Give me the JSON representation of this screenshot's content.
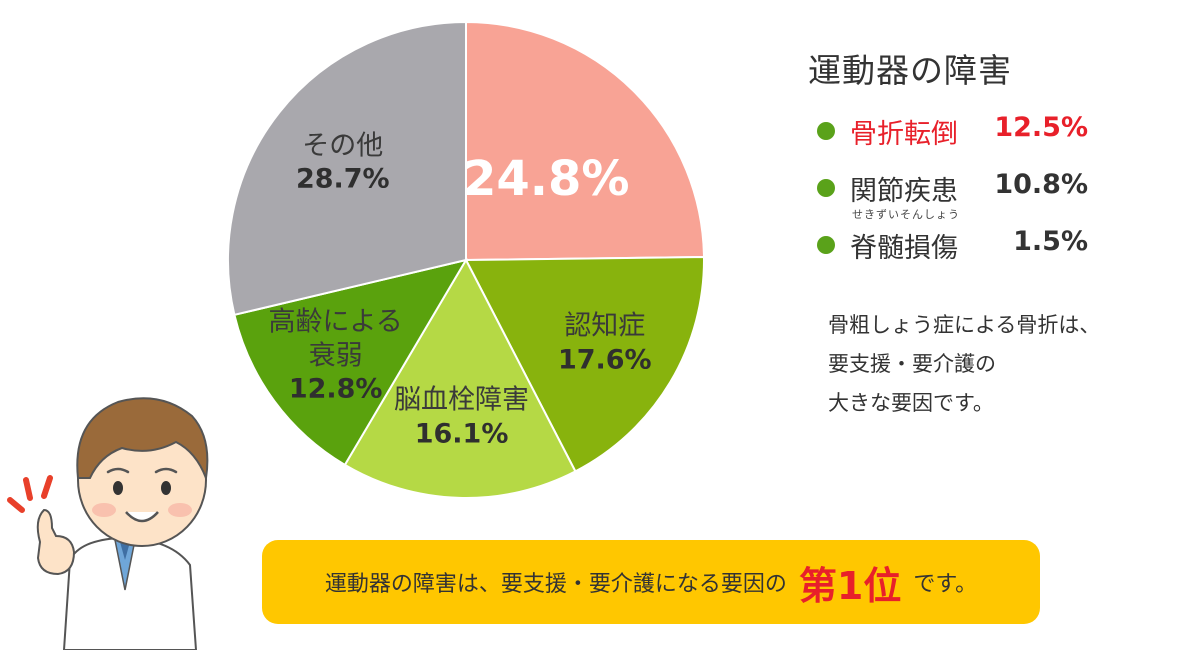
{
  "chart_data": {
    "type": "pie",
    "start_angle_deg": 0,
    "direction": "clockwise",
    "slices": [
      {
        "name": "",
        "value": 24.8,
        "label": "24.8%",
        "color": "#f8a395"
      },
      {
        "name": "認知症",
        "value": 17.6,
        "label": "17.6%",
        "color": "#88b30d"
      },
      {
        "name": "脳血栓障害",
        "value": 16.1,
        "label": "16.1%",
        "color": "#b5d945"
      },
      {
        "name": "高齢による\n衰弱",
        "value": 12.8,
        "label": "12.8%",
        "color": "#5aa20d"
      },
      {
        "name": "その他",
        "value": 28.7,
        "label": "28.7%",
        "color": "#a9a8ad"
      }
    ]
  },
  "legend": {
    "title": "運動器の障害",
    "dot_color": "#5aa21a",
    "items": [
      {
        "name": "骨折転倒",
        "value": "12.5%",
        "highlight": true,
        "ruby": ""
      },
      {
        "name": "関節疾患",
        "value": "10.8%",
        "highlight": false,
        "ruby": ""
      },
      {
        "name": "脊髄損傷",
        "value": "1.5%",
        "highlight": false,
        "ruby": "せきずいそんしょう"
      }
    ]
  },
  "note": {
    "lines": [
      "骨粗しょう症による骨折は、",
      "要支援・要介護の",
      "大きな要因です。"
    ]
  },
  "banner": {
    "prefix": "運動器の障害は、要支援・要介護になる要因の",
    "highlight": "第1位",
    "suffix": "です。",
    "color": "#ffc700"
  },
  "colors": {
    "accent_red": "#e8202a"
  }
}
